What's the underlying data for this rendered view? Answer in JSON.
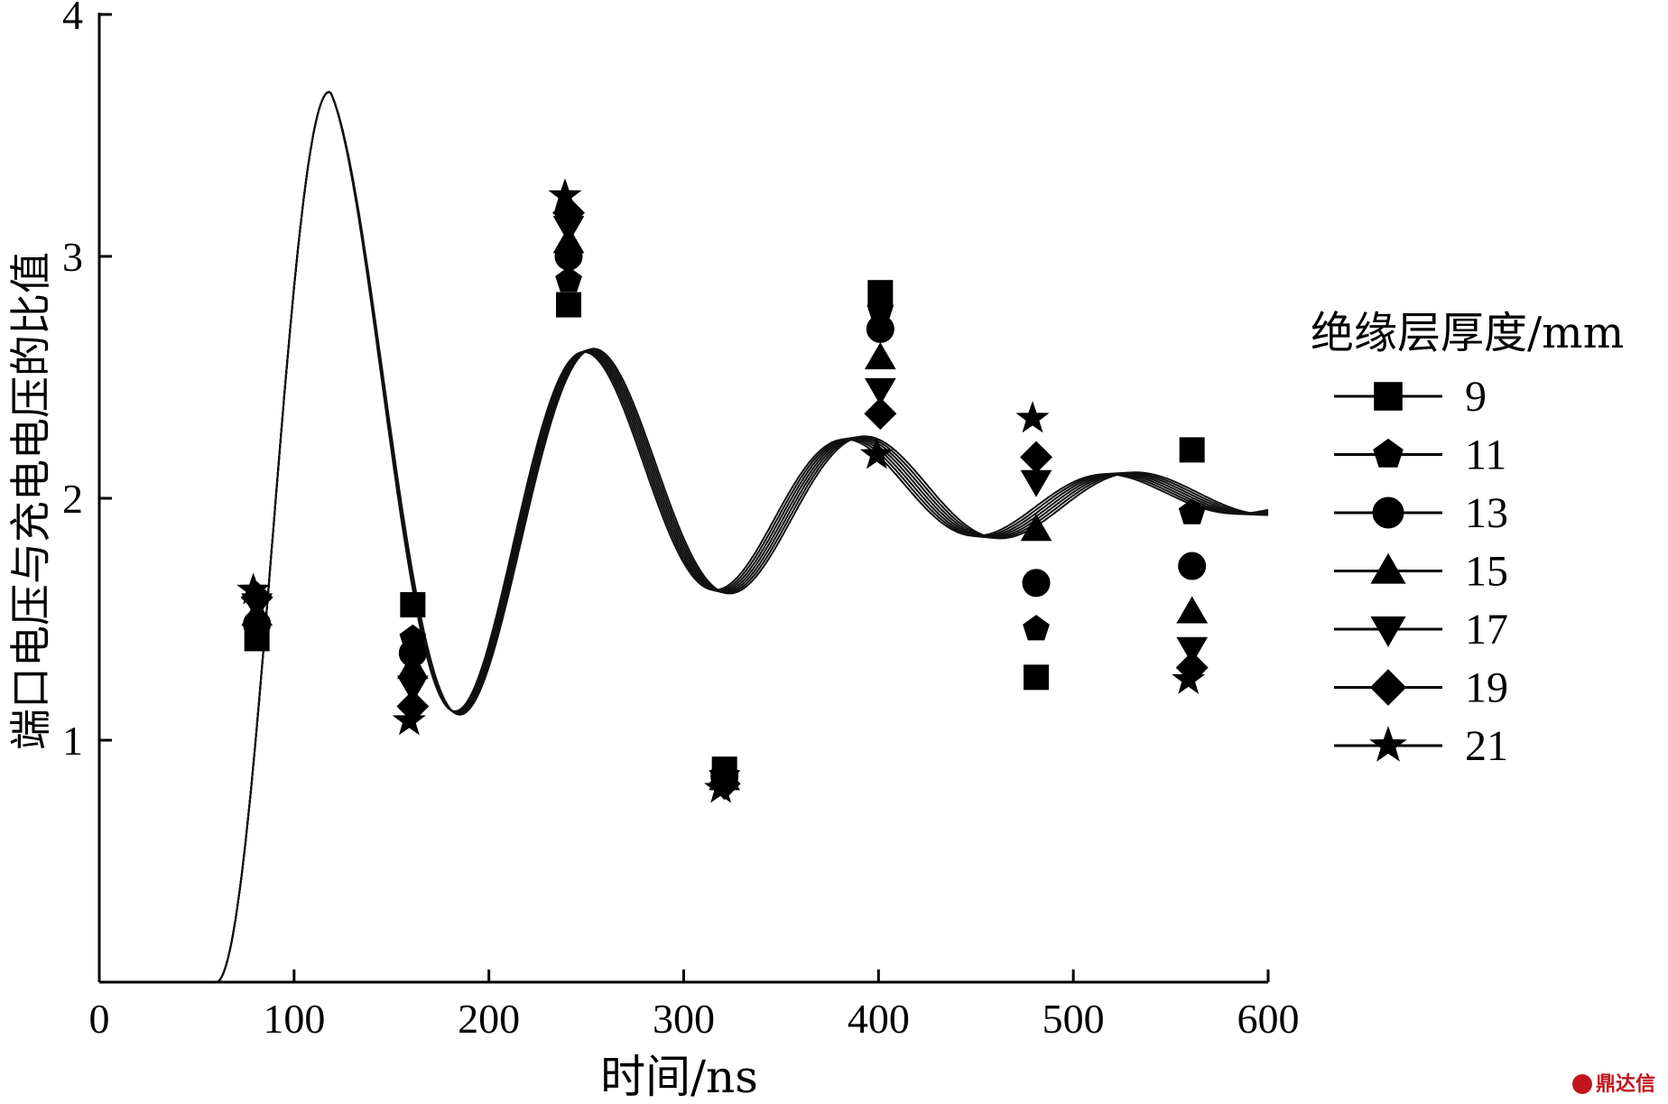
{
  "chart_data": {
    "type": "line",
    "title": "",
    "xlabel": "时间/ns",
    "ylabel": "端口电压与充电电压的比值",
    "xlim": [
      0,
      600
    ],
    "ylim": [
      0,
      4
    ],
    "xticks": [
      0,
      100,
      200,
      300,
      400,
      500,
      600
    ],
    "yticks": [
      1,
      2,
      3,
      4
    ],
    "xtick_labels": [
      "0",
      "100",
      "200",
      "300",
      "400",
      "500",
      "600"
    ],
    "ytick_labels": [
      "1",
      "2",
      "3",
      "4"
    ],
    "grid": false,
    "legend_title": "绝缘层厚度/mm",
    "legend_position": "right",
    "marker_x": [
      80,
      160,
      240,
      320,
      400,
      480,
      560
    ],
    "series": [
      {
        "name": "9",
        "marker": "square",
        "x": [
          80,
          160,
          240,
          320,
          400,
          480,
          560
        ],
        "y": [
          1.42,
          1.56,
          2.8,
          0.88,
          2.85,
          1.26,
          2.2
        ]
      },
      {
        "name": "11",
        "marker": "pentagon",
        "x": [
          80,
          160,
          240,
          320,
          400,
          480,
          560
        ],
        "y": [
          1.45,
          1.42,
          2.9,
          0.86,
          2.78,
          1.46,
          1.94
        ]
      },
      {
        "name": "13",
        "marker": "circle",
        "x": [
          80,
          160,
          240,
          320,
          400,
          480,
          560
        ],
        "y": [
          1.48,
          1.36,
          3.0,
          0.85,
          2.7,
          1.65,
          1.72
        ]
      },
      {
        "name": "15",
        "marker": "triangle-up",
        "x": [
          80,
          160,
          240,
          320,
          400,
          480,
          560
        ],
        "y": [
          1.52,
          1.3,
          3.06,
          0.84,
          2.58,
          1.87,
          1.53
        ]
      },
      {
        "name": "17",
        "marker": "triangle-down",
        "x": [
          80,
          160,
          240,
          320,
          400,
          480,
          560
        ],
        "y": [
          1.56,
          1.22,
          3.12,
          0.83,
          2.45,
          2.07,
          1.38
        ]
      },
      {
        "name": "19",
        "marker": "diamond",
        "x": [
          80,
          160,
          240,
          320,
          400,
          480,
          560
        ],
        "y": [
          1.59,
          1.14,
          3.18,
          0.82,
          2.35,
          2.17,
          1.3
        ]
      },
      {
        "name": "21",
        "marker": "star",
        "x": [
          80,
          160,
          240,
          320,
          400,
          480,
          560
        ],
        "y": [
          1.62,
          1.08,
          3.25,
          0.8,
          2.18,
          2.33,
          1.25
        ]
      }
    ]
  },
  "watermark": "鼎达信"
}
